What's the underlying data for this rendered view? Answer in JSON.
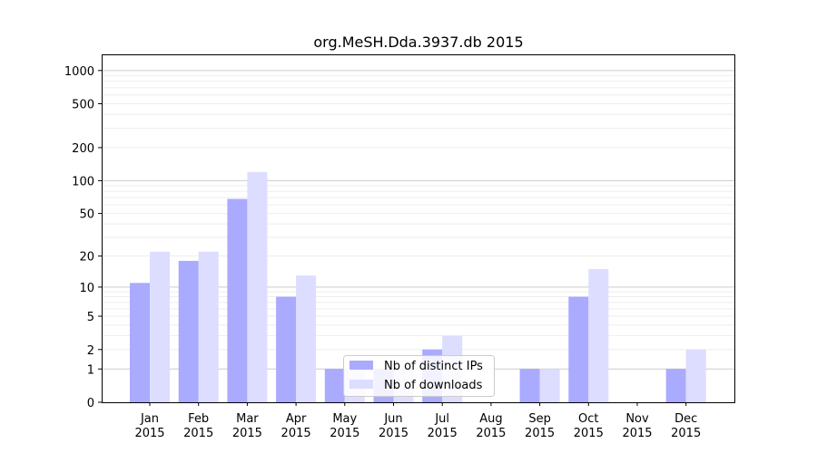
{
  "chart_data": {
    "type": "bar",
    "title": "org.MeSH.Dda.3937.db 2015",
    "xlabel": "",
    "ylabel": "",
    "y_scale": "symlog",
    "ylim": [
      0,
      1400
    ],
    "y_ticks": [
      0,
      1,
      2,
      5,
      10,
      20,
      50,
      100,
      200,
      500,
      1000
    ],
    "y_tick_labels": [
      "0",
      "1",
      "2",
      "5",
      "10",
      "20",
      "50",
      "100",
      "200",
      "500",
      "1000"
    ],
    "categories": [
      [
        "Jan",
        "2015"
      ],
      [
        "Feb",
        "2015"
      ],
      [
        "Mar",
        "2015"
      ],
      [
        "Apr",
        "2015"
      ],
      [
        "May",
        "2015"
      ],
      [
        "Jun",
        "2015"
      ],
      [
        "Jul",
        "2015"
      ],
      [
        "Aug",
        "2015"
      ],
      [
        "Sep",
        "2015"
      ],
      [
        "Oct",
        "2015"
      ],
      [
        "Nov",
        "2015"
      ],
      [
        "Dec",
        "2015"
      ]
    ],
    "series": [
      {
        "name": "Nb of distinct IPs",
        "color": "#aaaaff",
        "values": [
          11,
          18,
          68,
          8,
          1,
          1,
          2,
          0,
          1,
          8,
          0,
          1
        ]
      },
      {
        "name": "Nb of downloads",
        "color": "#ddddff",
        "values": [
          22,
          22,
          120,
          13,
          1,
          1,
          3,
          0,
          1,
          15,
          0,
          2
        ]
      }
    ],
    "legend_position": "bottom-center",
    "grid": true
  }
}
